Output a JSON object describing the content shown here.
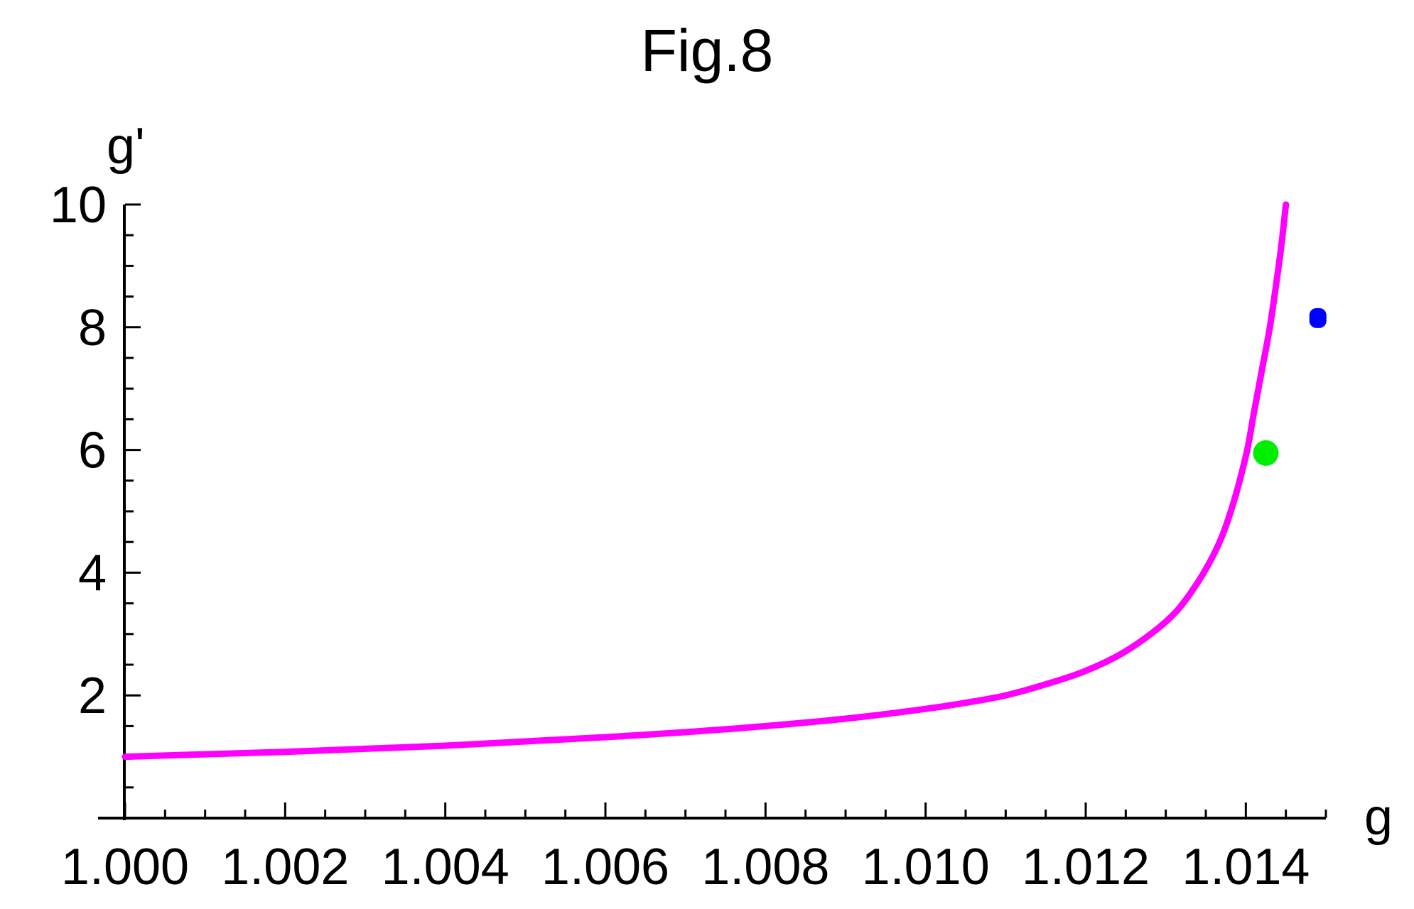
{
  "chart_data": {
    "type": "line",
    "title": "Fig.8",
    "xlabel": "g",
    "ylabel": "g'",
    "xlim": [
      1.0,
      1.015
    ],
    "ylim": [
      0,
      10
    ],
    "x_ticks": [
      "1.000",
      "1.002",
      "1.004",
      "1.006",
      "1.008",
      "1.010",
      "1.012",
      "1.014"
    ],
    "y_ticks": [
      "2",
      "4",
      "6",
      "8",
      "10"
    ],
    "grid": false,
    "legend": "none",
    "series": [
      {
        "color": "#ff00ff",
        "x": [
          1.0,
          1.001,
          1.002,
          1.003,
          1.004,
          1.005,
          1.006,
          1.007,
          1.008,
          1.009,
          1.01,
          1.0105,
          1.011,
          1.0115,
          1.012,
          1.0125,
          1.013,
          1.0133,
          1.0136,
          1.0138,
          1.014,
          1.0141,
          1.0142,
          1.0143,
          1.0144,
          1.01445,
          1.0145
        ],
        "y": [
          1.0,
          1.04,
          1.08,
          1.13,
          1.18,
          1.25,
          1.32,
          1.4,
          1.5,
          1.62,
          1.78,
          1.88,
          2.0,
          2.18,
          2.4,
          2.72,
          3.2,
          3.65,
          4.3,
          4.95,
          5.9,
          6.6,
          7.3,
          8.0,
          8.9,
          9.4,
          10.0
        ]
      }
    ],
    "markers": [
      {
        "name": "green-point",
        "color": "#00ee00",
        "x": 1.01425,
        "y": 5.95
      },
      {
        "name": "blue-point",
        "color": "#0000ff",
        "x": 1.0149,
        "y": 8.15
      }
    ]
  }
}
